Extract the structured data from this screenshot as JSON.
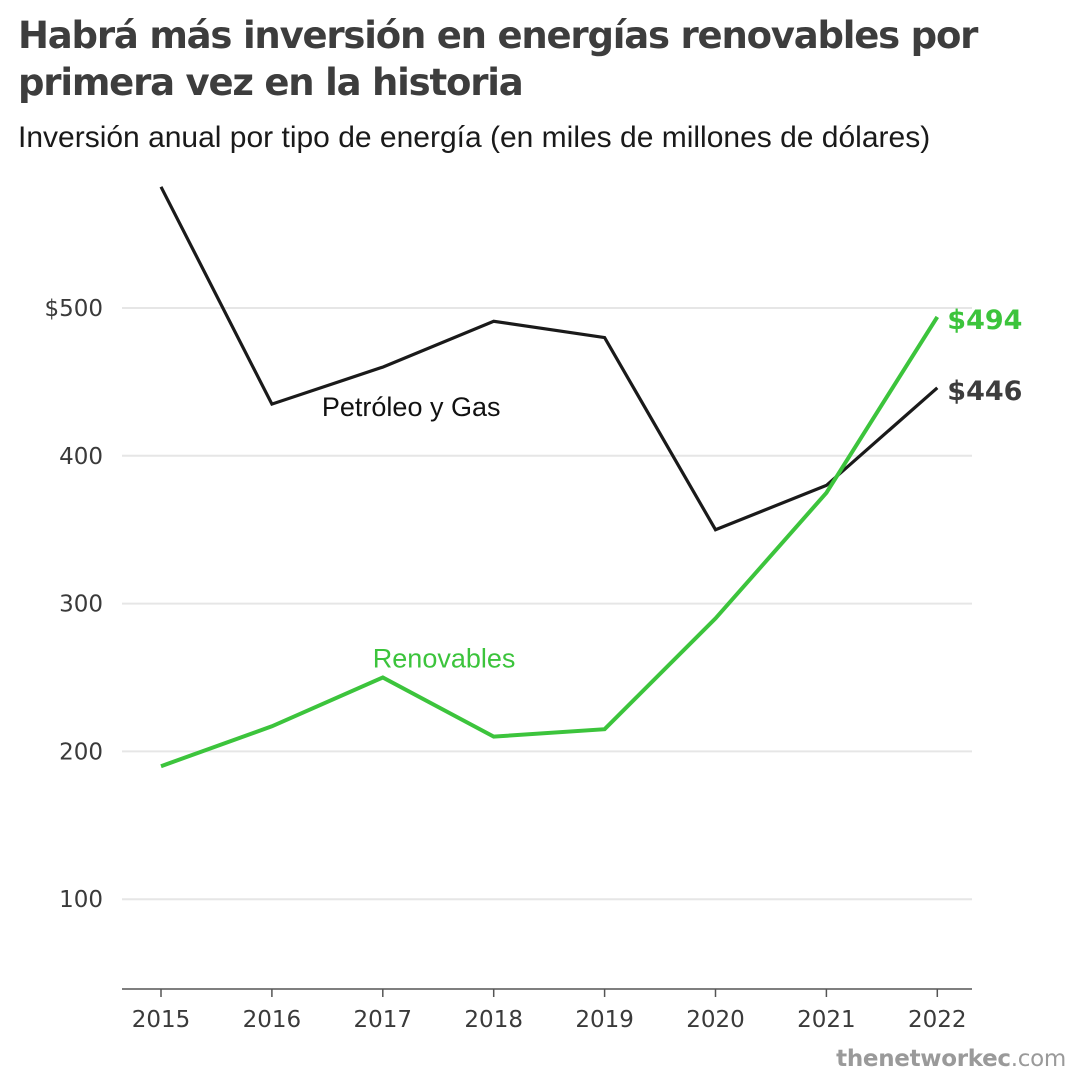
{
  "chart_data": {
    "type": "line",
    "title": "Habrá más inversión en energías renovables por primera vez en la historia",
    "subtitle": "Inversión anual por tipo de energía (en miles de millones de dólares)",
    "x": [
      "2015",
      "2016",
      "2017",
      "2018",
      "2019",
      "2020",
      "2021",
      "2022"
    ],
    "y_ticks": [
      {
        "value": 100,
        "label": "100"
      },
      {
        "value": 200,
        "label": "200"
      },
      {
        "value": 300,
        "label": "300"
      },
      {
        "value": 400,
        "label": "400"
      },
      {
        "value": 500,
        "label": "$500"
      }
    ],
    "ylim": [
      40,
      590
    ],
    "grid": true,
    "series": [
      {
        "name": "Petróleo y Gas",
        "color": "#1a1a1a",
        "values": [
          582,
          435,
          460,
          491,
          480,
          350,
          380,
          446
        ],
        "end_label": "$446",
        "end_label_color": "#3d3d3d"
      },
      {
        "name": "Renovables",
        "color": "#3cc43c",
        "values": [
          190,
          217,
          250,
          210,
          215,
          290,
          375,
          494
        ],
        "end_label": "$494",
        "end_label_color": "#3cc43c"
      }
    ]
  },
  "source": {
    "bold": "thenetworkec",
    "rest": ".com"
  }
}
